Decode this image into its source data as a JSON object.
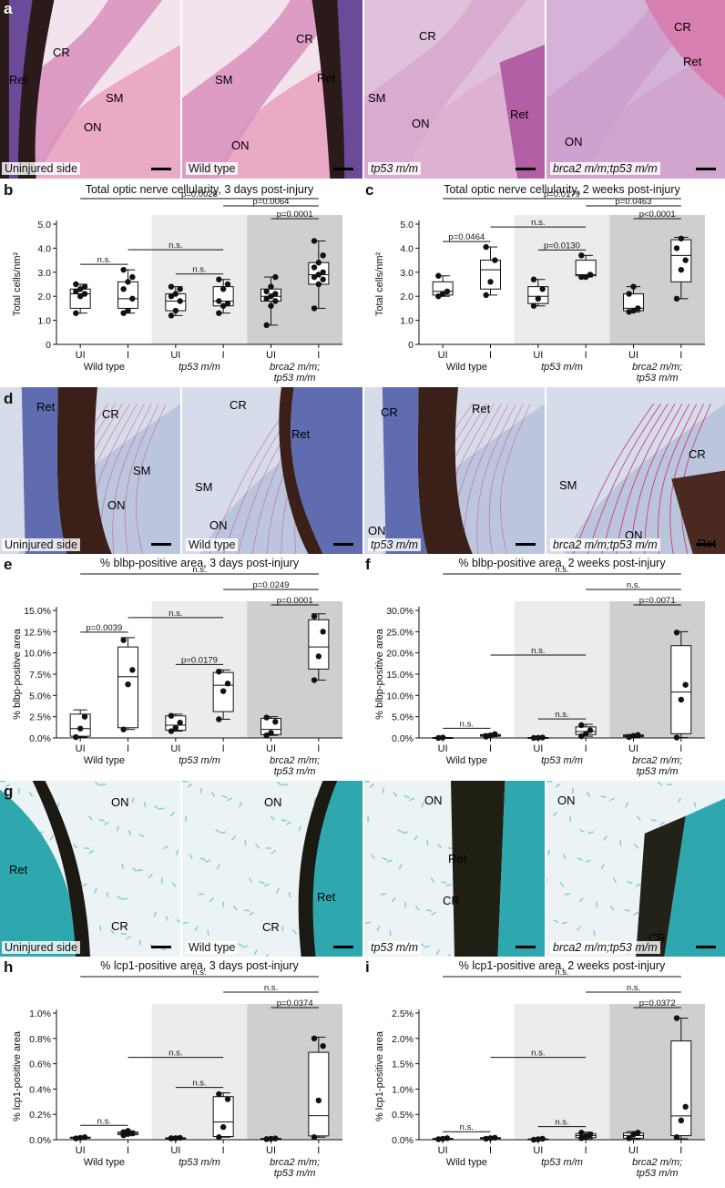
{
  "figure": {
    "panel_letters": {
      "a": "a",
      "b": "b",
      "c": "c",
      "d": "d",
      "e": "e",
      "f": "f",
      "g": "g",
      "h": "h",
      "i": "i"
    },
    "photo_rows": {
      "a": {
        "images": [
          {
            "caption": "Uninjured side",
            "labels": [
              "CR",
              "Ret",
              "SM",
              "ON"
            ]
          },
          {
            "caption": "Wild type",
            "labels": [
              "CR",
              "Ret",
              "SM",
              "ON"
            ]
          },
          {
            "caption": "tp53 m/m",
            "labels": [
              "CR",
              "SM",
              "Ret",
              "ON"
            ]
          },
          {
            "caption": "brca2 m/m;tp53 m/m",
            "labels": [
              "CR",
              "Ret",
              "ON"
            ]
          }
        ]
      },
      "d": {
        "images": [
          {
            "caption": "Uninjured side",
            "labels": [
              "Ret",
              "CR",
              "SM",
              "ON"
            ]
          },
          {
            "caption": "Wild type",
            "labels": [
              "CR",
              "Ret",
              "SM",
              "ON"
            ]
          },
          {
            "caption": "tp53 m/m",
            "labels": [
              "CR",
              "Ret",
              "ON"
            ]
          },
          {
            "caption": "brca2 m/m;tp53 m/m",
            "labels": [
              "SM",
              "CR",
              "ON",
              "Ret"
            ]
          }
        ]
      },
      "g": {
        "images": [
          {
            "caption": "Uninjured side",
            "labels": [
              "ON",
              "Ret",
              "CR"
            ]
          },
          {
            "caption": "Wild type",
            "labels": [
              "ON",
              "Ret",
              "CR"
            ]
          },
          {
            "caption": "tp53 m/m",
            "labels": [
              "ON",
              "Ret",
              "CR"
            ]
          },
          {
            "caption": "brca2 m/m;tp53 m/m",
            "labels": [
              "ON",
              "CR"
            ]
          }
        ]
      }
    },
    "colors": {
      "he_pink": "#e9a7c4",
      "he_purple": "#6b4a9a",
      "ret_dark": "#2a1a1a",
      "blbp_blue": "#d7dcea",
      "blbp_red": "#c8326e",
      "lcp_cyan": "#33b7bd",
      "lcp_bg": "#ecf3f4",
      "shade_light": "#ececec",
      "shade_dark": "#cfcfcf"
    }
  },
  "chart_data": [
    {
      "id": "b",
      "type": "box",
      "title": "Total optic nerve cellularity, 3 days post-injury",
      "ylabel": "Total cells/nm²",
      "ylim": [
        0,
        5
      ],
      "yticks": [
        "0",
        "1.0",
        "2.0",
        "3.0",
        "4.0",
        "5.0"
      ],
      "categories": [
        "UI",
        "I",
        "UI",
        "I",
        "UI",
        "I"
      ],
      "groups": [
        "Wild type",
        "tp53 m/m",
        "brca2 m/m;",
        "tp53 m/m"
      ],
      "boxes": [
        {
          "min": 1.3,
          "q1": 1.5,
          "med": 2.1,
          "q3": 2.3,
          "max": 2.5,
          "points": [
            1.3,
            2.0,
            2.1,
            2.2,
            2.3,
            2.4,
            2.5
          ]
        },
        {
          "min": 1.3,
          "q1": 1.5,
          "med": 1.9,
          "q3": 2.6,
          "max": 3.1,
          "points": [
            1.3,
            1.4,
            1.9,
            2.3,
            2.6,
            2.8,
            3.1
          ]
        },
        {
          "min": 1.2,
          "q1": 1.4,
          "med": 1.8,
          "q3": 2.1,
          "max": 2.4,
          "points": [
            1.2,
            1.4,
            1.8,
            2.0,
            2.1,
            2.3,
            2.4
          ]
        },
        {
          "min": 1.3,
          "q1": 1.6,
          "med": 1.8,
          "q3": 2.4,
          "max": 2.7,
          "points": [
            1.3,
            1.6,
            1.7,
            1.8,
            2.3,
            2.5,
            2.7
          ]
        },
        {
          "min": 0.8,
          "q1": 1.8,
          "med": 2.0,
          "q3": 2.3,
          "max": 2.8,
          "points": [
            0.8,
            1.6,
            1.8,
            1.9,
            2.0,
            2.1,
            2.2,
            2.4,
            2.8
          ]
        },
        {
          "min": 1.5,
          "q1": 2.5,
          "med": 2.9,
          "q3": 3.4,
          "max": 4.3,
          "points": [
            1.5,
            2.5,
            2.7,
            2.8,
            2.9,
            3.0,
            3.2,
            3.4,
            3.7,
            4.3
          ]
        }
      ],
      "comparisons": [
        {
          "label": "p=0.0028",
          "from": 0,
          "to": 5,
          "level": 6
        },
        {
          "label": "p=0.0064",
          "from": 3,
          "to": 5,
          "level": 5
        },
        {
          "label": "p=0.0001",
          "from": 4,
          "to": 5,
          "level": 4
        },
        {
          "label": "n.s.",
          "from": 1,
          "to": 3,
          "level": 3
        },
        {
          "label": "n.s.",
          "from": 0,
          "to": 1,
          "level": 2
        },
        {
          "label": "n.s.",
          "from": 2,
          "to": 3,
          "level": 2
        }
      ]
    },
    {
      "id": "c",
      "type": "box",
      "title": "Total optic nerve cellularity, 2 weeks post-injury",
      "ylabel": "Total cells/nm²",
      "ylim": [
        0,
        5
      ],
      "yticks": [
        "0",
        "1.0",
        "2.0",
        "3.0",
        "4.0",
        "5.0"
      ],
      "categories": [
        "UI",
        "I",
        "UI",
        "I",
        "UI",
        "I"
      ],
      "groups": [
        "Wild type",
        "tp53 m/m",
        "brca2 m/m;",
        "tp53 m/m"
      ],
      "boxes": [
        {
          "min": 2.0,
          "q1": 2.05,
          "med": 2.2,
          "q3": 2.6,
          "max": 2.85,
          "points": [
            2.0,
            2.1,
            2.2,
            2.85
          ]
        },
        {
          "min": 2.05,
          "q1": 2.3,
          "med": 3.1,
          "q3": 3.5,
          "max": 4.05,
          "points": [
            2.05,
            2.6,
            3.5,
            4.05
          ]
        },
        {
          "min": 1.6,
          "q1": 1.7,
          "med": 2.0,
          "q3": 2.4,
          "max": 2.7,
          "points": [
            1.6,
            1.9,
            2.3,
            2.7
          ]
        },
        {
          "min": 2.8,
          "q1": 2.85,
          "med": 2.9,
          "q3": 3.5,
          "max": 3.7,
          "points": [
            2.8,
            2.8,
            2.9,
            3.7
          ]
        },
        {
          "min": 1.35,
          "q1": 1.4,
          "med": 1.5,
          "q3": 2.1,
          "max": 2.4,
          "points": [
            1.35,
            1.4,
            1.5,
            2.1,
            2.4
          ]
        },
        {
          "min": 1.9,
          "q1": 2.6,
          "med": 3.7,
          "q3": 4.35,
          "max": 4.45,
          "points": [
            1.9,
            3.1,
            3.5,
            4.0,
            4.4
          ]
        }
      ],
      "comparisons": [
        {
          "label": "p=0.0179",
          "from": 0,
          "to": 5,
          "level": 6
        },
        {
          "label": "p=0.0463",
          "from": 3,
          "to": 5,
          "level": 5
        },
        {
          "label": "p<0.0001",
          "from": 4,
          "to": 5,
          "level": 4
        },
        {
          "label": "n.s.",
          "from": 1,
          "to": 3,
          "level": 3
        },
        {
          "label": "p=0.0464",
          "from": 0,
          "to": 1,
          "level": 2
        },
        {
          "label": "p=0.0130",
          "from": 2,
          "to": 3,
          "level": 2
        }
      ]
    },
    {
      "id": "e",
      "type": "box",
      "title": "% blbp-positive area, 3 days post-injury",
      "ylabel": "% blbp-positive area",
      "ylim": [
        0,
        15
      ],
      "yticks": [
        "0.0%",
        "2.5%",
        "5.0%",
        "7.5%",
        "10.0%",
        "12.5%",
        "15.0%"
      ],
      "categories": [
        "UI",
        "I",
        "UI",
        "I",
        "UI",
        "I"
      ],
      "groups": [
        "Wild type",
        "tp53 m/m",
        "brca2 m/m;",
        "tp53 m/m"
      ],
      "boxes": [
        {
          "min": 0.1,
          "q1": 0.2,
          "med": 1.1,
          "q3": 2.8,
          "max": 3.3,
          "points": [
            0.1,
            1.1,
            2.5
          ]
        },
        {
          "min": 1.0,
          "q1": 1.2,
          "med": 7.2,
          "q3": 10.7,
          "max": 11.8,
          "points": [
            1.0,
            6.3,
            8.0,
            11.5
          ]
        },
        {
          "min": 0.8,
          "q1": 0.9,
          "med": 1.5,
          "q3": 2.6,
          "max": 2.8,
          "points": [
            0.8,
            1.2,
            1.8,
            2.6
          ]
        },
        {
          "min": 2.2,
          "q1": 3.1,
          "med": 6.2,
          "q3": 7.7,
          "max": 8.0,
          "points": [
            2.2,
            5.5,
            6.4,
            7.8
          ]
        },
        {
          "min": 0.3,
          "q1": 0.4,
          "med": 1.0,
          "q3": 2.3,
          "max": 2.5,
          "points": [
            0.3,
            0.6,
            1.9,
            2.4
          ]
        },
        {
          "min": 6.8,
          "q1": 8.1,
          "med": 10.7,
          "q3": 13.9,
          "max": 14.6,
          "points": [
            6.8,
            9.6,
            12.5,
            14.3
          ]
        }
      ],
      "comparisons": [
        {
          "label": "n.s.",
          "from": 0,
          "to": 5,
          "level": 6
        },
        {
          "label": "p=0.0249",
          "from": 3,
          "to": 5,
          "level": 5
        },
        {
          "label": "p=0.0001",
          "from": 4,
          "to": 5,
          "level": 4
        },
        {
          "label": "n.s.",
          "from": 1,
          "to": 3,
          "level": 3
        },
        {
          "label": "p=0.0039",
          "from": 0,
          "to": 1,
          "level": 2
        },
        {
          "label": "p=0.0179",
          "from": 2,
          "to": 3,
          "level": 2
        }
      ]
    },
    {
      "id": "f",
      "type": "box",
      "title": "% blbp-positive area, 2 weeks post-injury",
      "ylabel": "% blbp-positive area",
      "ylim": [
        0,
        30
      ],
      "yticks": [
        "0.0%",
        "5.0%",
        "10.0%",
        "15.0%",
        "20.0%",
        "25.0%",
        "30.0%"
      ],
      "categories": [
        "UI",
        "I",
        "UI",
        "I",
        "UI",
        "I"
      ],
      "groups": [
        "Wild type",
        "tp53 m/m",
        "brca2 m/m;",
        "tp53 m/m"
      ],
      "boxes": [
        {
          "min": 0.0,
          "q1": 0.0,
          "med": 0.0,
          "q3": 0.1,
          "max": 0.1,
          "points": [
            0.0,
            0.1
          ]
        },
        {
          "min": 0.3,
          "q1": 0.4,
          "med": 0.6,
          "q3": 0.8,
          "max": 1.0,
          "points": [
            0.3,
            0.6,
            0.9
          ]
        },
        {
          "min": 0.0,
          "q1": 0.0,
          "med": 0.05,
          "q3": 0.1,
          "max": 0.1,
          "points": [
            0.0,
            0.05,
            0.1
          ]
        },
        {
          "min": 0.4,
          "q1": 0.8,
          "med": 1.5,
          "q3": 2.6,
          "max": 3.2,
          "points": [
            0.4,
            1.0,
            1.8,
            3.0
          ]
        },
        {
          "min": 0.2,
          "q1": 0.3,
          "med": 0.5,
          "q3": 0.7,
          "max": 0.8,
          "points": [
            0.2,
            0.5,
            0.7
          ]
        },
        {
          "min": 0.1,
          "q1": 1.0,
          "med": 10.8,
          "q3": 21.7,
          "max": 25.0,
          "points": [
            0.1,
            9.0,
            12.5,
            24.8
          ]
        }
      ],
      "comparisons": [
        {
          "label": "n.s.",
          "from": 0,
          "to": 5,
          "level": 6
        },
        {
          "label": "n.s.",
          "from": 3,
          "to": 5,
          "level": 5
        },
        {
          "label": "p=0.0071",
          "from": 4,
          "to": 5,
          "level": 4
        },
        {
          "label": "n.s.",
          "from": 1,
          "to": 3,
          "level": 3
        },
        {
          "label": "n.s.",
          "from": 0,
          "to": 1,
          "level": 2
        },
        {
          "label": "n.s.",
          "from": 2,
          "to": 3,
          "level": 2
        }
      ]
    },
    {
      "id": "h",
      "type": "box",
      "title": "% lcp1-positive area, 3 days post-injury",
      "ylabel": "% lcp1-positive area",
      "ylim": [
        0,
        1.0
      ],
      "yticks": [
        "0.0%",
        "0.2%",
        "0.4%",
        "0.6%",
        "0.8%",
        "1.0%"
      ],
      "categories": [
        "UI",
        "I",
        "UI",
        "I",
        "UI",
        "I"
      ],
      "groups": [
        "Wild type",
        "tp53 m/m",
        "brca2 m/m;",
        "tp53 m/m"
      ],
      "boxes": [
        {
          "min": 0.01,
          "q1": 0.012,
          "med": 0.015,
          "q3": 0.02,
          "max": 0.022,
          "points": [
            0.01,
            0.015,
            0.02
          ]
        },
        {
          "min": 0.035,
          "q1": 0.04,
          "med": 0.05,
          "q3": 0.06,
          "max": 0.07,
          "points": [
            0.035,
            0.045,
            0.05,
            0.06,
            0.07
          ]
        },
        {
          "min": 0.01,
          "q1": 0.01,
          "med": 0.012,
          "q3": 0.015,
          "max": 0.015,
          "points": [
            0.01,
            0.012,
            0.015,
            0.012
          ]
        },
        {
          "min": 0.02,
          "q1": 0.025,
          "med": 0.14,
          "q3": 0.34,
          "max": 0.37,
          "points": [
            0.02,
            0.1,
            0.32,
            0.36
          ]
        },
        {
          "min": 0.005,
          "q1": 0.005,
          "med": 0.008,
          "q3": 0.01,
          "max": 0.01,
          "points": [
            0.005,
            0.008,
            0.01
          ]
        },
        {
          "min": 0.02,
          "q1": 0.03,
          "med": 0.19,
          "q3": 0.69,
          "max": 0.81,
          "points": [
            0.02,
            0.31,
            0.74,
            0.8
          ]
        }
      ],
      "comparisons": [
        {
          "label": "n.s.",
          "from": 0,
          "to": 5,
          "level": 6
        },
        {
          "label": "n.s.",
          "from": 3,
          "to": 5,
          "level": 5
        },
        {
          "label": "p=0.0374",
          "from": 4,
          "to": 5,
          "level": 4
        },
        {
          "label": "n.s.",
          "from": 1,
          "to": 3,
          "level": 3
        },
        {
          "label": "n.s.",
          "from": 0,
          "to": 1,
          "level": 2
        },
        {
          "label": "n.s.",
          "from": 2,
          "to": 3,
          "level": 2
        }
      ]
    },
    {
      "id": "i",
      "type": "box",
      "title": "% lcp1-positive area, 2 weeks post-injury",
      "ylabel": "% lcp1-positive area",
      "ylim": [
        0,
        2.5
      ],
      "yticks": [
        "0.0%",
        "0.5%",
        "1.0%",
        "1.5%",
        "2.0%",
        "2.5%"
      ],
      "categories": [
        "UI",
        "I",
        "UI",
        "I",
        "UI",
        "I"
      ],
      "groups": [
        "Wild type",
        "tp53 m/m",
        "brca2 m/m;",
        "tp53 m/m"
      ],
      "boxes": [
        {
          "min": 0.01,
          "q1": 0.015,
          "med": 0.02,
          "q3": 0.025,
          "max": 0.03,
          "points": [
            0.01,
            0.02,
            0.03
          ]
        },
        {
          "min": 0.02,
          "q1": 0.025,
          "med": 0.03,
          "q3": 0.04,
          "max": 0.05,
          "points": [
            0.02,
            0.03,
            0.04
          ]
        },
        {
          "min": 0.0,
          "q1": 0.005,
          "med": 0.01,
          "q3": 0.015,
          "max": 0.02,
          "points": [
            0.0,
            0.01,
            0.02
          ]
        },
        {
          "min": 0.02,
          "q1": 0.04,
          "med": 0.08,
          "q3": 0.12,
          "max": 0.15,
          "points": [
            0.03,
            0.06,
            0.1,
            0.14
          ]
        },
        {
          "min": 0.02,
          "q1": 0.03,
          "med": 0.08,
          "q3": 0.13,
          "max": 0.16,
          "points": [
            0.03,
            0.1,
            0.14
          ]
        },
        {
          "min": 0.02,
          "q1": 0.08,
          "med": 0.47,
          "q3": 1.95,
          "max": 2.4,
          "points": [
            0.05,
            0.38,
            0.65,
            2.4
          ]
        }
      ],
      "comparisons": [
        {
          "label": "n.s.",
          "from": 0,
          "to": 5,
          "level": 6
        },
        {
          "label": "n.s.",
          "from": 3,
          "to": 5,
          "level": 5
        },
        {
          "label": "p=0.0372",
          "from": 4,
          "to": 5,
          "level": 4
        },
        {
          "label": "n.s.",
          "from": 1,
          "to": 3,
          "level": 3
        },
        {
          "label": "n.s.",
          "from": 0,
          "to": 1,
          "level": 2
        },
        {
          "label": "n.s.",
          "from": 2,
          "to": 3,
          "level": 2
        }
      ]
    }
  ]
}
